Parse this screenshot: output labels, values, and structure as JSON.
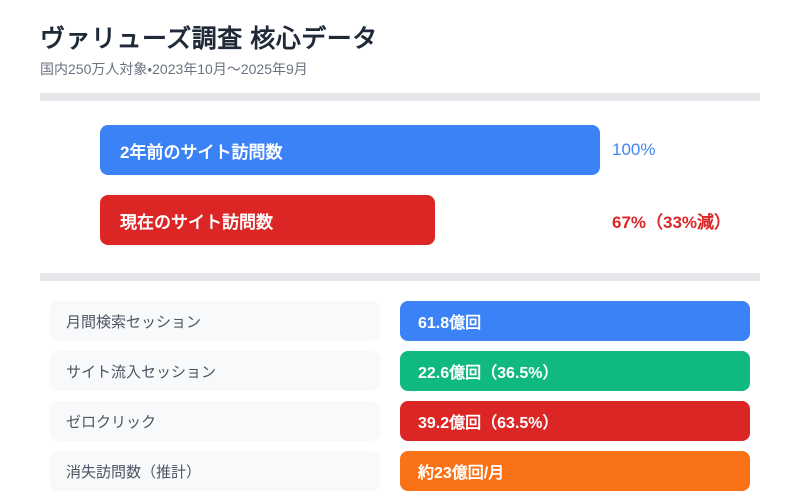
{
  "header": {
    "title": "ヴァリューズ調査 核心データ",
    "subtitle": "国内250万人対象・2023年10月～2025年9月"
  },
  "palette": {
    "title_text": "#1f2937",
    "subtitle_text": "#6b7280",
    "divider": "#e5e7eb",
    "row_label_bg": "#f8f9fa",
    "row_label_text": "#4b5563",
    "blue": "#3b82f6",
    "red": "#dc2626",
    "green": "#10b981",
    "orange": "#f97316"
  },
  "chart_data": [
    {
      "type": "bar",
      "orientation": "horizontal",
      "categories": [
        "2年前のサイト訪問数",
        "現在のサイト訪問数"
      ],
      "values": [
        100,
        67
      ],
      "unit": "%",
      "xlim": [
        0,
        100
      ],
      "value_labels": [
        "100%",
        "67%（33%減）"
      ],
      "colors": [
        "#3b82f6",
        "#dc2626"
      ],
      "value_label_colors": [
        "#4285f4",
        "#dc2626"
      ],
      "grid": false,
      "legend": false,
      "notes": "bar length proportional to value; category label printed inside bar, value label to the right"
    },
    {
      "type": "bar",
      "orientation": "horizontal",
      "categories": [
        "月間検索セッション",
        "サイト流入セッション",
        "ゼロクリック",
        "消失訪問数（推計）"
      ],
      "values": [
        61.8,
        22.6,
        39.2,
        23
      ],
      "unit": "億回/月",
      "value_labels": [
        "61.8億回",
        "22.6億回（36.5%）",
        "39.2億回（63.5%）",
        "約23億回/月"
      ],
      "colors": [
        "#3b82f6",
        "#10b981",
        "#dc2626",
        "#f97316"
      ],
      "grid": false,
      "legend": false,
      "notes": "equal-width colored value pills (not value-scaled); label pill on left, value pill on right"
    }
  ]
}
